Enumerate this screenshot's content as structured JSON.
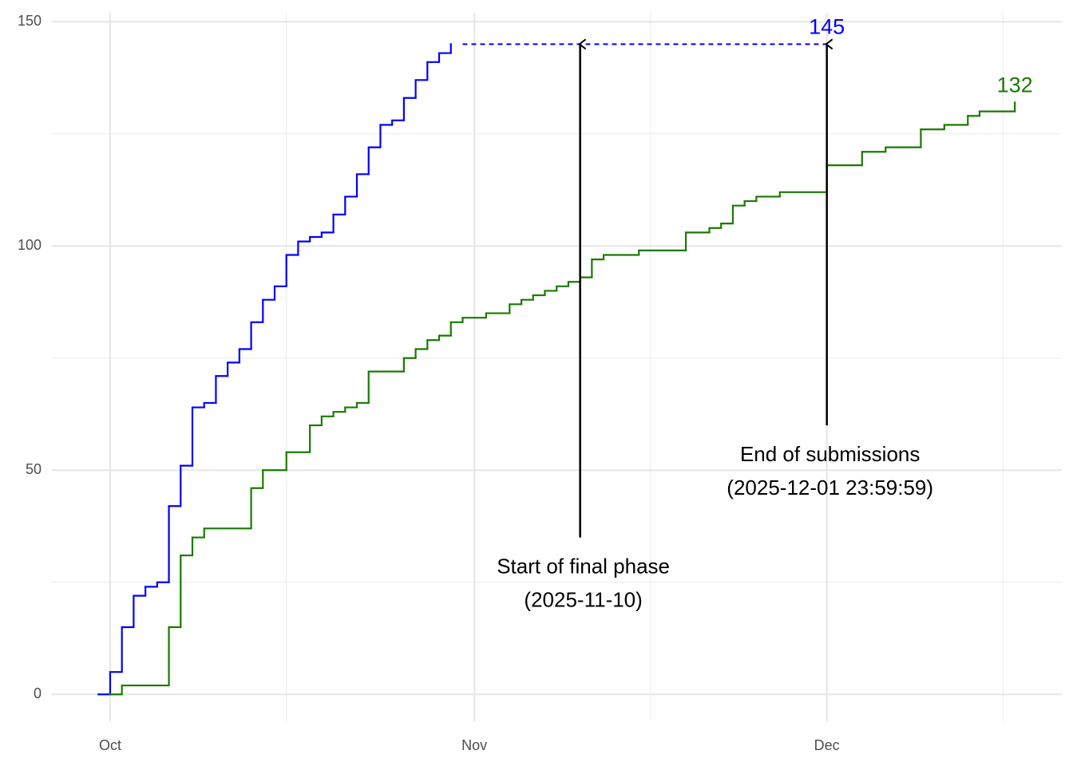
{
  "chart_data": {
    "type": "step",
    "xlim": [
      "2025-09-26",
      "2025-12-21"
    ],
    "ylim": [
      -6,
      152
    ],
    "xticks": [
      {
        "value": "2025-10-01",
        "label": "Oct"
      },
      {
        "value": "2025-11-01",
        "label": "Nov"
      },
      {
        "value": "2025-12-01",
        "label": "Dec"
      }
    ],
    "minor_xticks": [
      "2025-10-16",
      "2025-11-16",
      "2025-12-16"
    ],
    "yticks": [
      0,
      50,
      100,
      150
    ],
    "minor_yticks": [
      25,
      75,
      125
    ],
    "grid": true,
    "series": [
      {
        "color": "#0000ff",
        "x": [
          "2025-09-30",
          "2025-10-01",
          "2025-10-02",
          "2025-10-03",
          "2025-10-04",
          "2025-10-05",
          "2025-10-06",
          "2025-10-07",
          "2025-10-08",
          "2025-10-09",
          "2025-10-10",
          "2025-10-11",
          "2025-10-12",
          "2025-10-13",
          "2025-10-14",
          "2025-10-15",
          "2025-10-16",
          "2025-10-17",
          "2025-10-18",
          "2025-10-19",
          "2025-10-20",
          "2025-10-21",
          "2025-10-22",
          "2025-10-23",
          "2025-10-24",
          "2025-10-25",
          "2025-10-26",
          "2025-10-27",
          "2025-10-28",
          "2025-10-29",
          "2025-10-30"
        ],
        "values": [
          0,
          5,
          15,
          22,
          24,
          25,
          42,
          51,
          64,
          65,
          71,
          74,
          77,
          83,
          88,
          91,
          98,
          101,
          102,
          103,
          107,
          111,
          116,
          122,
          127,
          128,
          133,
          137,
          141,
          143,
          145
        ]
      },
      {
        "color": "#1a7a00",
        "x": [
          "2025-10-01",
          "2025-10-02",
          "2025-10-06",
          "2025-10-07",
          "2025-10-08",
          "2025-10-09",
          "2025-10-13",
          "2025-10-14",
          "2025-10-16",
          "2025-10-18",
          "2025-10-19",
          "2025-10-20",
          "2025-10-21",
          "2025-10-22",
          "2025-10-23",
          "2025-10-26",
          "2025-10-27",
          "2025-10-28",
          "2025-10-29",
          "2025-10-30",
          "2025-10-31",
          "2025-11-02",
          "2025-11-04",
          "2025-11-05",
          "2025-11-06",
          "2025-11-07",
          "2025-11-08",
          "2025-11-09",
          "2025-11-10",
          "2025-11-11",
          "2025-11-12",
          "2025-11-15",
          "2025-11-19",
          "2025-11-21",
          "2025-11-22",
          "2025-11-23",
          "2025-11-24",
          "2025-11-25",
          "2025-11-27",
          "2025-12-01",
          "2025-12-04",
          "2025-12-06",
          "2025-12-09",
          "2025-12-11",
          "2025-12-13",
          "2025-12-14",
          "2025-12-17"
        ],
        "values": [
          0,
          2,
          15,
          31,
          35,
          37,
          46,
          50,
          54,
          60,
          62,
          63,
          64,
          65,
          72,
          75,
          77,
          79,
          80,
          83,
          84,
          85,
          87,
          88,
          89,
          90,
          91,
          92,
          93,
          97,
          98,
          99,
          103,
          104,
          105,
          109,
          110,
          111,
          112,
          118,
          121,
          122,
          126,
          127,
          129,
          130,
          132
        ]
      }
    ],
    "reference": {
      "color": "#0000ff",
      "y": 145,
      "from": "2025-10-31",
      "to": "2025-12-01"
    },
    "labels": [
      {
        "x": "2025-12-01",
        "y": 145,
        "text": "145",
        "color": "#0000ff"
      },
      {
        "x": "2025-12-17",
        "y": 132,
        "text": "132",
        "color": "#1a7a00"
      }
    ],
    "annotations": [
      {
        "x": "2025-11-10",
        "y_from": 35,
        "y_to": 145,
        "lines": [
          "Start of final phase",
          "(2025-11-10)"
        ]
      },
      {
        "x": "2025-12-01",
        "y_from": 60,
        "y_to": 145,
        "lines": [
          "End of submissions",
          "(2025-12-01 23:59:59)"
        ]
      }
    ]
  }
}
